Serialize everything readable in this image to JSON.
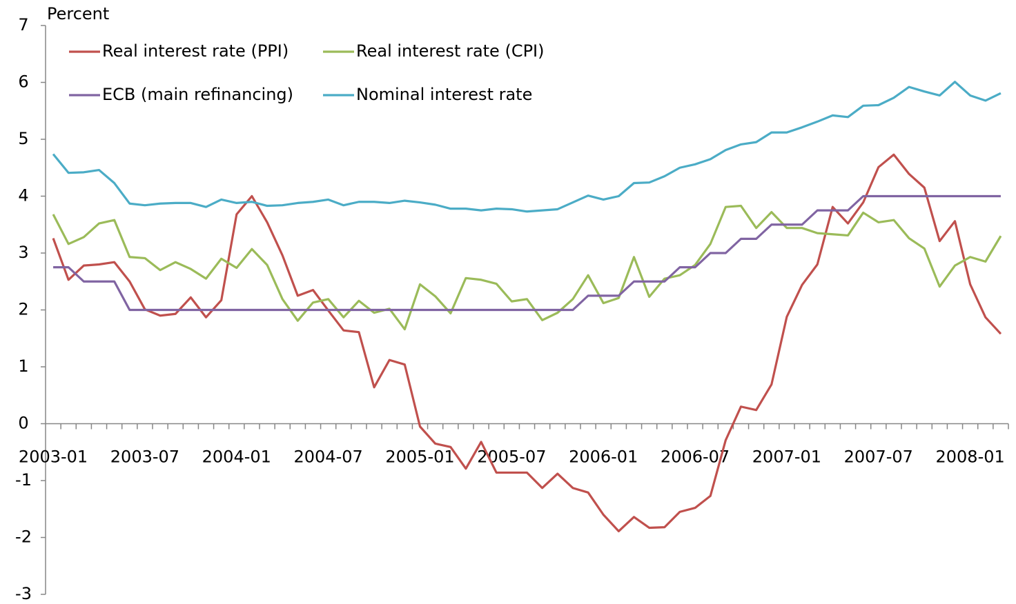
{
  "chart_data": {
    "type": "line",
    "y_label": "Percent",
    "categories": [
      "2003-01",
      null,
      null,
      null,
      null,
      null,
      "2003-07",
      null,
      null,
      null,
      null,
      null,
      "2004-01",
      null,
      null,
      null,
      null,
      null,
      "2004-07",
      null,
      null,
      null,
      null,
      null,
      "2005-01",
      null,
      null,
      null,
      null,
      null,
      "2005-07",
      null,
      null,
      null,
      null,
      null,
      "2006-01",
      null,
      null,
      null,
      null,
      null,
      "2006-07",
      null,
      null,
      null,
      null,
      null,
      "2007-01",
      null,
      null,
      null,
      null,
      null,
      "2007-07",
      null,
      null,
      null,
      null,
      null,
      "2008-01",
      null,
      null
    ],
    "series": [
      {
        "name": "Real interest rate (PPI)",
        "color": "#c0504d",
        "values": [
          3.26,
          2.53,
          2.78,
          2.8,
          2.84,
          2.5,
          2.01,
          1.9,
          1.93,
          2.22,
          1.87,
          2.17,
          3.68,
          4.0,
          3.54,
          2.96,
          2.25,
          2.35,
          1.99,
          1.64,
          1.61,
          0.64,
          1.12,
          1.04,
          -0.05,
          -0.35,
          -0.41,
          -0.79,
          -0.32,
          -0.86,
          -0.86,
          -0.86,
          -1.13,
          -0.88,
          -1.13,
          -1.21,
          -1.6,
          -1.89,
          -1.64,
          -1.83,
          -1.82,
          -1.55,
          -1.48,
          -1.27,
          -0.29,
          0.3,
          0.24,
          0.69,
          1.88,
          2.44,
          2.8,
          3.81,
          3.52,
          3.89,
          4.51,
          4.73,
          4.39,
          4.15,
          3.21,
          3.56,
          2.45,
          1.87,
          1.58
        ]
      },
      {
        "name": "Real interest rate (CPI)",
        "color": "#9bbb59",
        "values": [
          3.68,
          3.16,
          3.28,
          3.52,
          3.58,
          2.93,
          2.91,
          2.7,
          2.84,
          2.72,
          2.55,
          2.9,
          2.74,
          3.07,
          2.79,
          2.19,
          1.81,
          2.13,
          2.19,
          1.87,
          2.16,
          1.95,
          2.02,
          1.66,
          2.45,
          2.24,
          1.94,
          2.56,
          2.53,
          2.46,
          2.15,
          2.19,
          1.82,
          1.95,
          2.19,
          2.61,
          2.12,
          2.21,
          2.93,
          2.23,
          2.55,
          2.61,
          2.79,
          3.16,
          3.81,
          3.83,
          3.44,
          3.72,
          3.44,
          3.44,
          3.35,
          3.33,
          3.31,
          3.71,
          3.54,
          3.58,
          3.26,
          3.08,
          2.41,
          2.78,
          2.93,
          2.85,
          3.3
        ]
      },
      {
        "name": "ECB (main refinancing)",
        "color": "#8064a2",
        "values": [
          2.75,
          2.75,
          2.5,
          2.5,
          2.5,
          2.0,
          2.0,
          2.0,
          2.0,
          2.0,
          2.0,
          2.0,
          2.0,
          2.0,
          2.0,
          2.0,
          2.0,
          2.0,
          2.0,
          2.0,
          2.0,
          2.0,
          2.0,
          2.0,
          2.0,
          2.0,
          2.0,
          2.0,
          2.0,
          2.0,
          2.0,
          2.0,
          2.0,
          2.0,
          2.0,
          2.25,
          2.25,
          2.25,
          2.5,
          2.5,
          2.5,
          2.75,
          2.75,
          3.0,
          3.0,
          3.25,
          3.25,
          3.5,
          3.5,
          3.5,
          3.75,
          3.75,
          3.75,
          4.0,
          4.0,
          4.0,
          4.0,
          4.0,
          4.0,
          4.0,
          4.0,
          4.0,
          4.0
        ]
      },
      {
        "name": "Nominal interest rate",
        "color": "#4bacc6",
        "values": [
          4.74,
          4.41,
          4.42,
          4.46,
          4.23,
          3.87,
          3.84,
          3.87,
          3.88,
          3.88,
          3.81,
          3.94,
          3.88,
          3.9,
          3.83,
          3.84,
          3.88,
          3.9,
          3.94,
          3.84,
          3.9,
          3.9,
          3.88,
          3.92,
          3.89,
          3.85,
          3.78,
          3.78,
          3.75,
          3.78,
          3.77,
          3.73,
          3.75,
          3.77,
          3.89,
          4.01,
          3.94,
          4.0,
          4.23,
          4.24,
          4.35,
          4.5,
          4.56,
          4.65,
          4.81,
          4.91,
          4.95,
          5.12,
          5.12,
          5.21,
          5.31,
          5.42,
          5.39,
          5.59,
          5.6,
          5.73,
          5.92,
          5.84,
          5.77,
          6.01,
          5.77,
          5.68,
          5.81
        ]
      }
    ],
    "ylim": [
      -3,
      7
    ],
    "yticks": [
      -3,
      -2,
      -1,
      0,
      1,
      2,
      3,
      4,
      5,
      6,
      7
    ],
    "grid": false,
    "legend": "top-left"
  }
}
